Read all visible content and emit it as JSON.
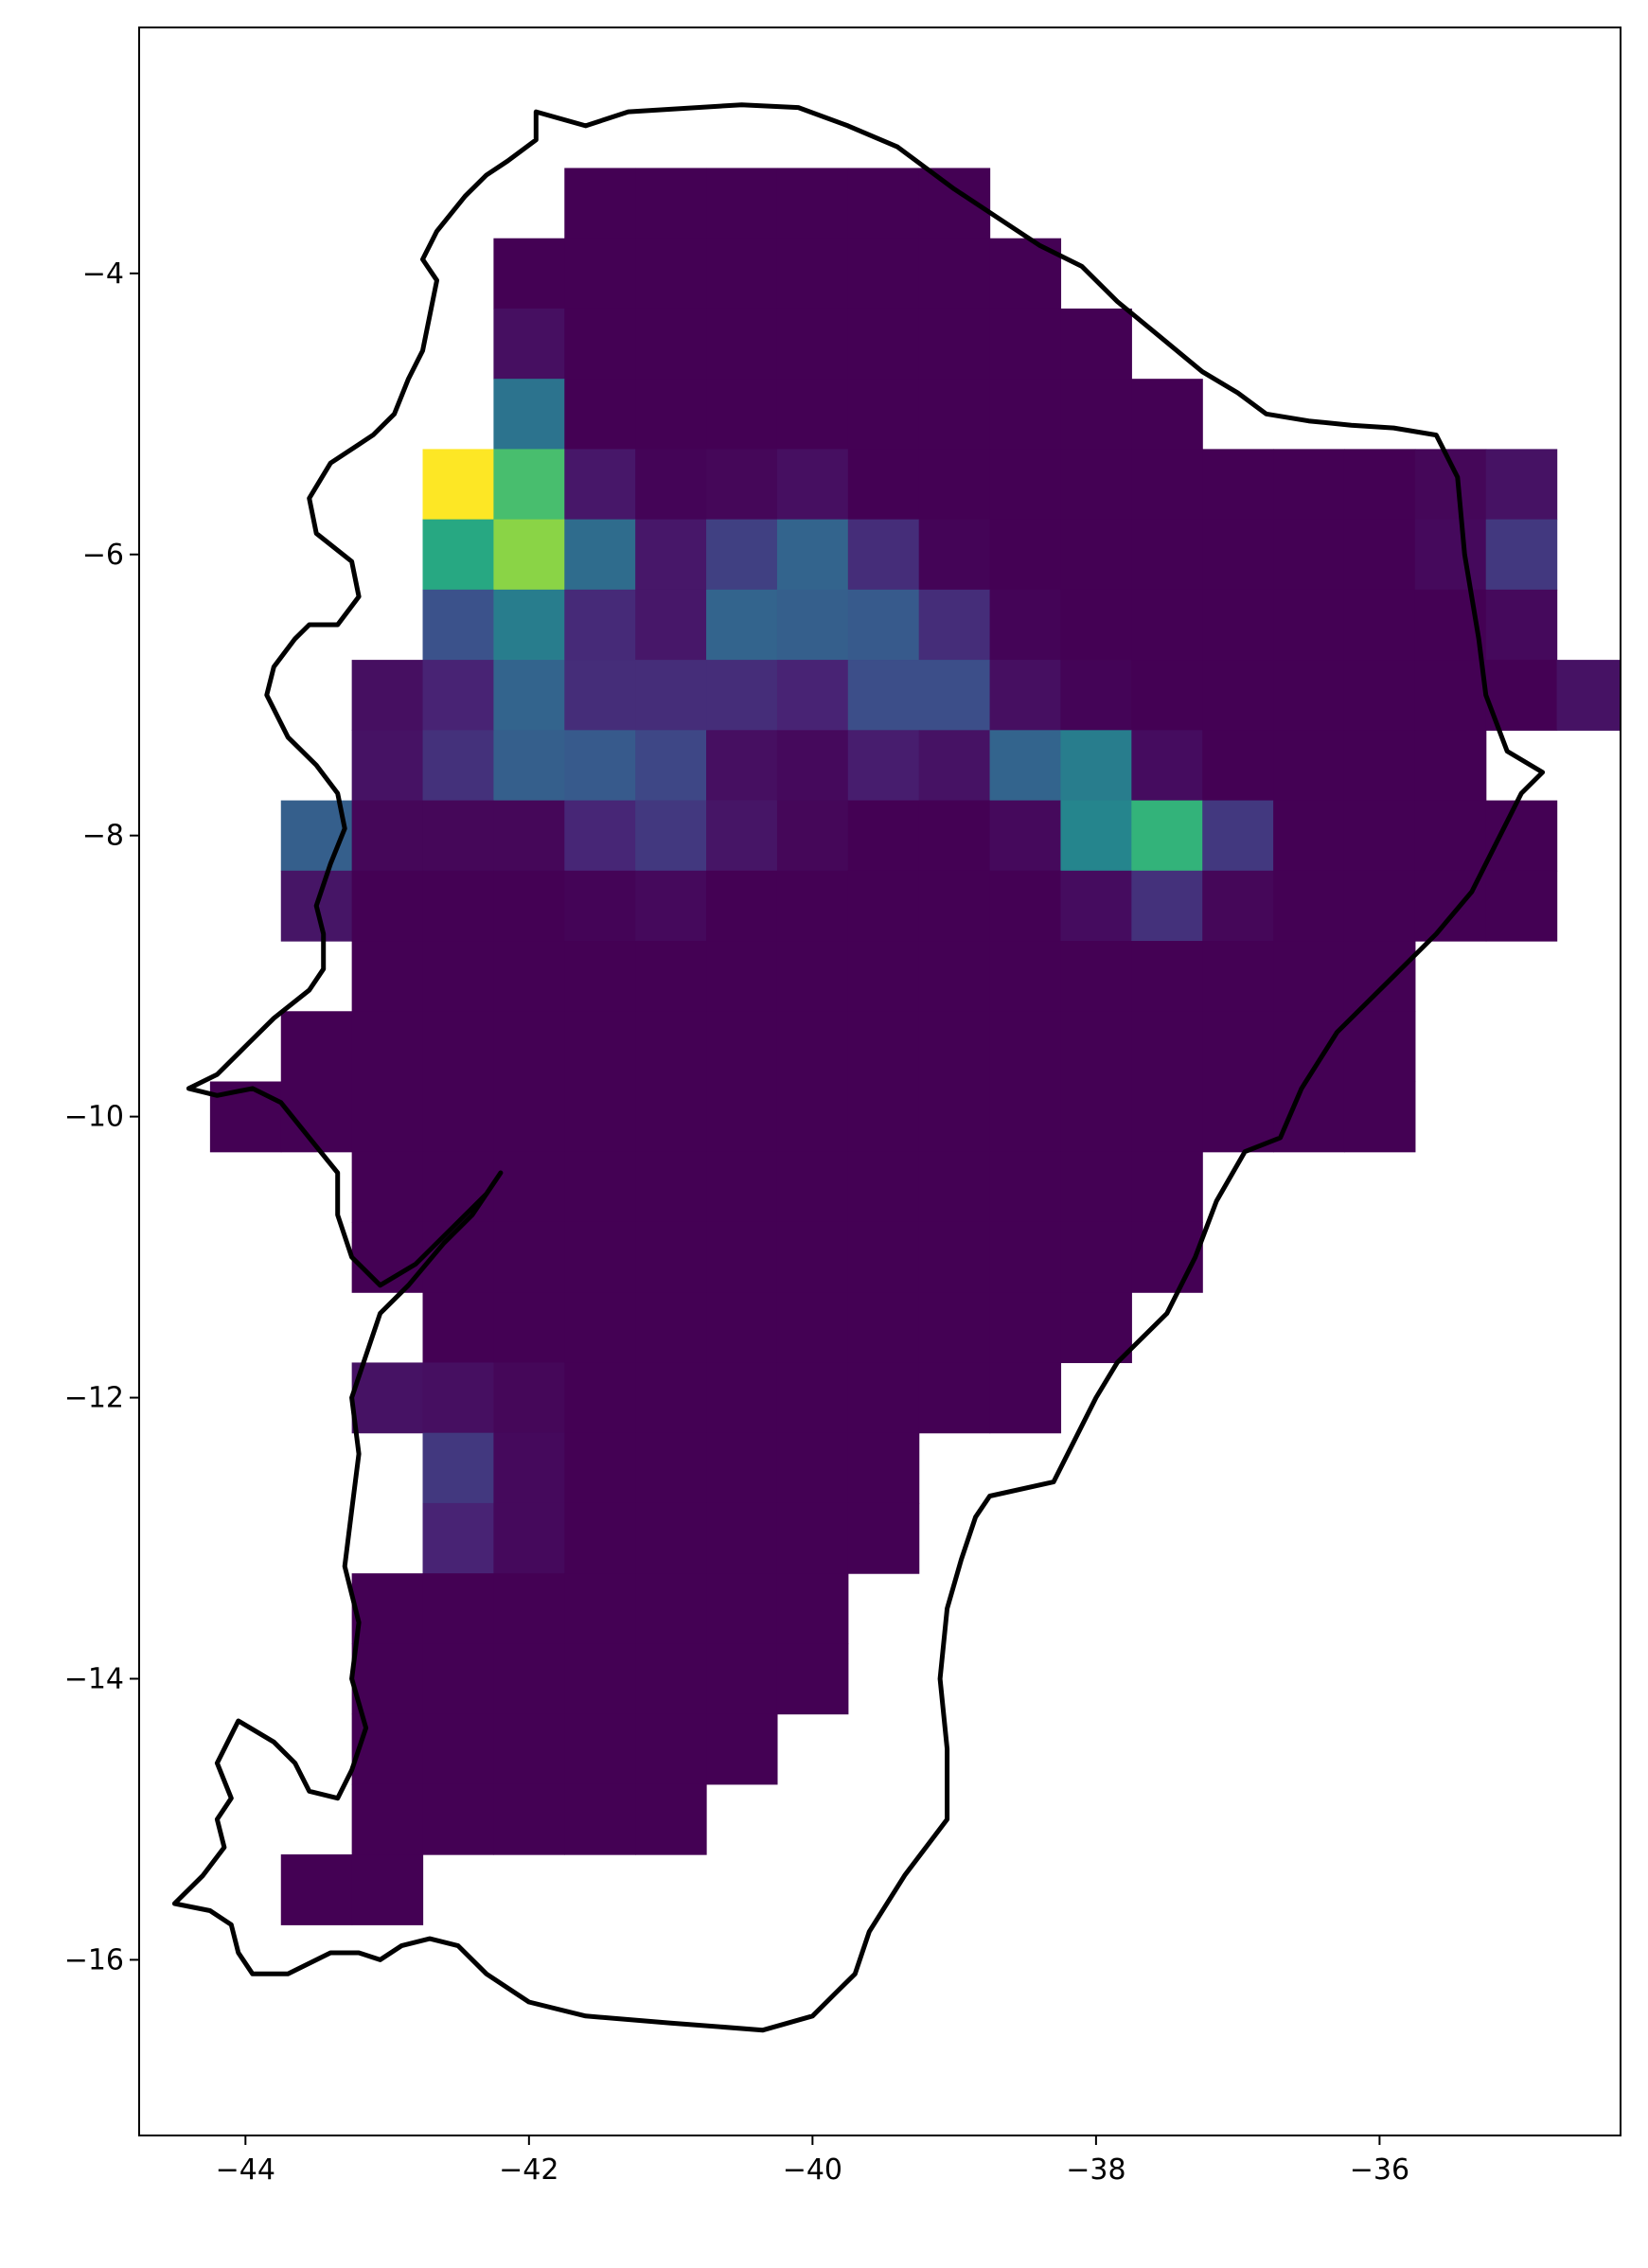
{
  "chart_data": {
    "type": "heatmap",
    "title": "",
    "xlabel": "",
    "ylabel": "",
    "xlim": [
      -44.75,
      -34.3
    ],
    "ylim": [
      -17.25,
      -2.25
    ],
    "grid": false,
    "legend": false,
    "colormap": "viridis",
    "cell_size_deg": 0.5,
    "value_range": [
      0,
      1
    ],
    "x_ticks": [
      {
        "value": -44,
        "label": "−44"
      },
      {
        "value": -42,
        "label": "−42"
      },
      {
        "value": -40,
        "label": "−40"
      },
      {
        "value": -38,
        "label": "−38"
      },
      {
        "value": -36,
        "label": "−36"
      }
    ],
    "y_ticks": [
      {
        "value": -4,
        "label": "−4"
      },
      {
        "value": -6,
        "label": "−6"
      },
      {
        "value": -8,
        "label": "−8"
      },
      {
        "value": -10,
        "label": "−10"
      },
      {
        "value": -12,
        "label": "−12"
      },
      {
        "value": -14,
        "label": "−14"
      },
      {
        "value": -16,
        "label": "−16"
      }
    ],
    "grid_rows": [
      {
        "lat": -3.5,
        "lon_start": -41.5,
        "values": [
          0,
          0,
          0,
          0,
          0,
          0
        ]
      },
      {
        "lat": -4.0,
        "lon_start": -42.0,
        "values": [
          0,
          0,
          0,
          0,
          0,
          0,
          0,
          0
        ]
      },
      {
        "lat": -4.5,
        "lon_start": -42.0,
        "values": [
          0.05,
          0,
          0,
          0,
          0,
          0,
          0,
          0,
          0
        ]
      },
      {
        "lat": -5.0,
        "lon_start": -42.0,
        "values": [
          0.38,
          0,
          0,
          0,
          0,
          0,
          0,
          0,
          0,
          0
        ]
      },
      {
        "lat": -5.5,
        "lon_start": -42.5,
        "values": [
          1.0,
          0.7,
          0.08,
          0.01,
          0.02,
          0.05,
          0,
          0,
          0,
          0,
          0,
          0,
          0,
          0,
          0.02,
          0.06
        ]
      },
      {
        "lat": -6.0,
        "lon_start": -42.5,
        "values": [
          0.6,
          0.82,
          0.35,
          0.08,
          0.2,
          0.32,
          0.15,
          0.01,
          0,
          0,
          0,
          0,
          0,
          0,
          0.03,
          0.18
        ]
      },
      {
        "lat": -6.5,
        "lon_start": -42.5,
        "values": [
          0.25,
          0.42,
          0.14,
          0.08,
          0.32,
          0.3,
          0.28,
          0.15,
          0.01,
          0,
          0,
          0,
          0,
          0,
          0,
          0.03
        ]
      },
      {
        "lat": -7.0,
        "lon_start": -43.0,
        "values": [
          0.05,
          0.12,
          0.32,
          0.15,
          0.15,
          0.15,
          0.12,
          0.24,
          0.24,
          0.05,
          0.01,
          0,
          0,
          0,
          0,
          0,
          0,
          0.06
        ]
      },
      {
        "lat": -7.5,
        "lon_start": -43.0,
        "values": [
          0.06,
          0.16,
          0.3,
          0.28,
          0.22,
          0.05,
          0.03,
          0.1,
          0.06,
          0.32,
          0.42,
          0.04,
          0,
          0,
          0,
          0
        ]
      },
      {
        "lat": -8.0,
        "lon_start": -43.5,
        "values": [
          0.3,
          0.02,
          0.02,
          0.02,
          0.13,
          0.18,
          0.07,
          0.02,
          0,
          0,
          0.03,
          0.45,
          0.65,
          0.18,
          0,
          0,
          0,
          0
        ]
      },
      {
        "lat": -8.5,
        "lon_start": -43.5,
        "values": [
          0.07,
          0,
          0,
          0,
          0.01,
          0.03,
          0,
          0,
          0,
          0,
          0,
          0.04,
          0.16,
          0.02,
          0,
          0,
          0,
          0
        ]
      },
      {
        "lat": -9.0,
        "lon_start": -43.0,
        "values": [
          0,
          0,
          0,
          0,
          0,
          0,
          0,
          0,
          0,
          0,
          0,
          0,
          0,
          0,
          0
        ]
      },
      {
        "lat": -9.5,
        "lon_start": -43.5,
        "values": [
          0,
          0,
          0,
          0,
          0,
          0,
          0,
          0,
          0,
          0,
          0,
          0,
          0,
          0,
          0,
          0
        ]
      },
      {
        "lat": -10.0,
        "lon_start": -44.0,
        "values": [
          0,
          0,
          0,
          0,
          0,
          0,
          0,
          0,
          0,
          0,
          0,
          0,
          0,
          0,
          0,
          0,
          0
        ]
      },
      {
        "lat": -10.5,
        "lon_start": -43.0,
        "values": [
          0,
          0,
          0,
          0,
          0,
          0,
          0,
          0,
          0,
          0,
          0,
          0
        ]
      },
      {
        "lat": -11.0,
        "lon_start": -43.0,
        "values": [
          0,
          0,
          0,
          0,
          0,
          0,
          0,
          0,
          0,
          0,
          0,
          0
        ]
      },
      {
        "lat": -11.5,
        "lon_start": -42.5,
        "values": [
          0,
          0,
          0,
          0,
          0,
          0,
          0,
          0,
          0,
          0
        ]
      },
      {
        "lat": -12.0,
        "lon_start": -43.0,
        "values": [
          0.06,
          0.05,
          0.02,
          0,
          0,
          0,
          0,
          0,
          0,
          0
        ]
      },
      {
        "lat": -12.5,
        "lon_start": -42.5,
        "values": [
          0.18,
          0.03,
          0,
          0,
          0,
          0,
          0
        ]
      },
      {
        "lat": -13.0,
        "lon_start": -42.5,
        "values": [
          0.12,
          0.03,
          0,
          0,
          0,
          0,
          0
        ]
      },
      {
        "lat": -13.5,
        "lon_start": -43.0,
        "values": [
          0,
          0,
          0,
          0,
          0,
          0,
          0
        ]
      },
      {
        "lat": -14.0,
        "lon_start": -43.0,
        "values": [
          0,
          0,
          0,
          0,
          0,
          0,
          0
        ]
      },
      {
        "lat": -14.5,
        "lon_start": -43.0,
        "values": [
          0,
          0,
          0,
          0,
          0,
          0
        ]
      },
      {
        "lat": -15.0,
        "lon_start": -43.0,
        "values": [
          0,
          0,
          0,
          0,
          0
        ]
      },
      {
        "lat": -15.5,
        "lon_start": -43.5,
        "values": [
          0,
          0
        ]
      }
    ],
    "coastline": [
      [
        -41.95,
        -2.85
      ],
      [
        -41.6,
        -2.95
      ],
      [
        -41.3,
        -2.85
      ],
      [
        -40.5,
        -2.8
      ],
      [
        -40.1,
        -2.82
      ],
      [
        -39.75,
        -2.95
      ],
      [
        -39.4,
        -3.1
      ],
      [
        -39.0,
        -3.4
      ],
      [
        -38.7,
        -3.6
      ],
      [
        -38.4,
        -3.8
      ],
      [
        -38.1,
        -3.95
      ],
      [
        -37.85,
        -4.2
      ],
      [
        -37.55,
        -4.45
      ],
      [
        -37.25,
        -4.7
      ],
      [
        -37.0,
        -4.85
      ],
      [
        -36.8,
        -5.0
      ],
      [
        -36.5,
        -5.05
      ],
      [
        -36.2,
        -5.08
      ],
      [
        -35.9,
        -5.1
      ],
      [
        -35.6,
        -5.15
      ],
      [
        -35.45,
        -5.45
      ],
      [
        -35.4,
        -6.0
      ],
      [
        -35.3,
        -6.6
      ],
      [
        -35.25,
        -7.0
      ],
      [
        -35.1,
        -7.4
      ],
      [
        -34.85,
        -7.55
      ],
      [
        -35.0,
        -7.7
      ],
      [
        -35.15,
        -8.0
      ],
      [
        -35.35,
        -8.4
      ],
      [
        -35.6,
        -8.7
      ],
      [
        -35.9,
        -9.0
      ],
      [
        -36.3,
        -9.4
      ],
      [
        -36.55,
        -9.8
      ],
      [
        -36.7,
        -10.15
      ],
      [
        -36.95,
        -10.25
      ],
      [
        -37.15,
        -10.6
      ],
      [
        -37.3,
        -11.0
      ],
      [
        -37.5,
        -11.4
      ],
      [
        -37.85,
        -11.75
      ],
      [
        -38.0,
        -12.0
      ],
      [
        -38.3,
        -12.6
      ],
      [
        -38.75,
        -12.7
      ],
      [
        -38.85,
        -12.85
      ],
      [
        -38.95,
        -13.15
      ],
      [
        -39.05,
        -13.5
      ],
      [
        -39.1,
        -14.0
      ],
      [
        -39.05,
        -14.5
      ],
      [
        -39.05,
        -15.0
      ],
      [
        -39.35,
        -15.4
      ],
      [
        -39.6,
        -15.8
      ],
      [
        -39.7,
        -16.1
      ],
      [
        -39.85,
        -16.25
      ],
      [
        -40.0,
        -16.4
      ],
      [
        -40.35,
        -16.5
      ],
      [
        -41.0,
        -16.45
      ],
      [
        -41.6,
        -16.4
      ],
      [
        -42.0,
        -16.3
      ],
      [
        -42.3,
        -16.1
      ],
      [
        -42.5,
        -15.9
      ],
      [
        -42.7,
        -15.85
      ],
      [
        -42.9,
        -15.9
      ],
      [
        -43.05,
        -16.0
      ],
      [
        -43.2,
        -15.95
      ],
      [
        -43.4,
        -15.95
      ],
      [
        -43.7,
        -16.1
      ],
      [
        -43.95,
        -16.1
      ],
      [
        -44.05,
        -15.95
      ],
      [
        -44.1,
        -15.75
      ],
      [
        -44.25,
        -15.65
      ],
      [
        -44.5,
        -15.6
      ],
      [
        -44.3,
        -15.4
      ],
      [
        -44.15,
        -15.2
      ],
      [
        -44.2,
        -15.0
      ],
      [
        -44.1,
        -14.85
      ],
      [
        -44.2,
        -14.6
      ],
      [
        -44.05,
        -14.3
      ],
      [
        -43.8,
        -14.45
      ],
      [
        -43.65,
        -14.6
      ],
      [
        -43.55,
        -14.8
      ],
      [
        -43.35,
        -14.85
      ],
      [
        -43.25,
        -14.65
      ],
      [
        -43.15,
        -14.35
      ],
      [
        -43.25,
        -14.0
      ],
      [
        -43.2,
        -13.6
      ],
      [
        -43.3,
        -13.2
      ],
      [
        -43.25,
        -12.8
      ],
      [
        -43.2,
        -12.4
      ],
      [
        -43.25,
        -12.0
      ],
      [
        -43.15,
        -11.7
      ],
      [
        -43.05,
        -11.4
      ],
      [
        -42.85,
        -11.2
      ],
      [
        -42.6,
        -10.9
      ],
      [
        -42.4,
        -10.7
      ],
      [
        -42.2,
        -10.4
      ],
      [
        -42.3,
        -10.55
      ],
      [
        -42.55,
        -10.8
      ],
      [
        -42.8,
        -11.05
      ],
      [
        -43.05,
        -11.2
      ],
      [
        -43.25,
        -11.0
      ],
      [
        -43.35,
        -10.7
      ],
      [
        -43.35,
        -10.4
      ],
      [
        -43.55,
        -10.15
      ],
      [
        -43.75,
        -9.9
      ],
      [
        -43.95,
        -9.8
      ],
      [
        -44.2,
        -9.85
      ],
      [
        -44.4,
        -9.8
      ],
      [
        -44.2,
        -9.7
      ],
      [
        -44.0,
        -9.5
      ],
      [
        -43.8,
        -9.3
      ],
      [
        -43.55,
        -9.1
      ],
      [
        -43.45,
        -8.95
      ],
      [
        -43.45,
        -8.7
      ],
      [
        -43.5,
        -8.5
      ],
      [
        -43.4,
        -8.2
      ],
      [
        -43.3,
        -7.95
      ],
      [
        -43.35,
        -7.7
      ],
      [
        -43.5,
        -7.5
      ],
      [
        -43.7,
        -7.3
      ],
      [
        -43.85,
        -7.0
      ],
      [
        -43.8,
        -6.8
      ],
      [
        -43.65,
        -6.6
      ],
      [
        -43.55,
        -6.5
      ],
      [
        -43.35,
        -6.5
      ],
      [
        -43.2,
        -6.3
      ],
      [
        -43.25,
        -6.05
      ],
      [
        -43.5,
        -5.85
      ],
      [
        -43.55,
        -5.6
      ],
      [
        -43.4,
        -5.35
      ],
      [
        -43.1,
        -5.15
      ],
      [
        -42.95,
        -5.0
      ],
      [
        -42.85,
        -4.75
      ],
      [
        -42.75,
        -4.55
      ],
      [
        -42.7,
        -4.3
      ],
      [
        -42.65,
        -4.05
      ],
      [
        -42.75,
        -3.9
      ],
      [
        -42.65,
        -3.7
      ],
      [
        -42.45,
        -3.45
      ],
      [
        -42.3,
        -3.3
      ],
      [
        -42.15,
        -3.2
      ],
      [
        -41.95,
        -3.05
      ],
      [
        -41.95,
        -2.85
      ]
    ]
  }
}
